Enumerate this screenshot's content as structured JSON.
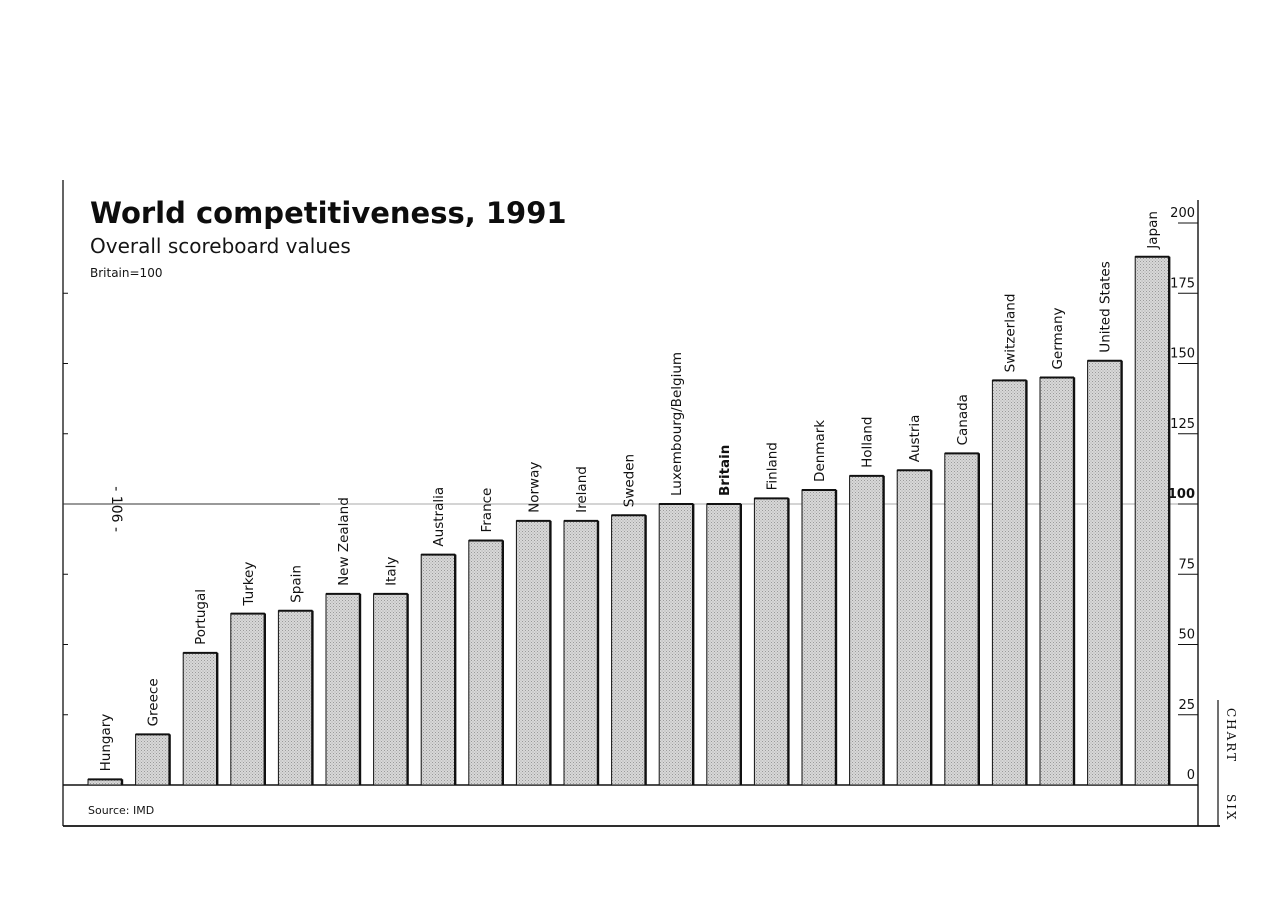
{
  "header": {
    "title": "World competitiveness, 1991",
    "subtitle": "Overall scoreboard values",
    "note": "Britain=100"
  },
  "footer": {
    "source": "Source: IMD",
    "side_tag_top": "CHART",
    "side_tag_bottom": "SIX"
  },
  "colors": {
    "bar_fill": "#d8d8d8",
    "bar_edge": "#111111",
    "axis": "#111111"
  },
  "chart_data": {
    "type": "bar",
    "title": "World competitiveness, 1991",
    "subtitle": "Overall scoreboard values",
    "xlabel": "",
    "ylabel": "",
    "ylim": [
      0,
      200
    ],
    "yticks": [
      "0",
      "25",
      "50",
      "75",
      "100",
      "125",
      "150",
      "175",
      "200"
    ],
    "categories": [
      "Hungary",
      "Greece",
      "Portugal",
      "Turkey",
      "Spain",
      "New Zealand",
      "Italy",
      "Australia",
      "France",
      "Norway",
      "Ireland",
      "Sweden",
      "Luxembourg/Belgium",
      "Britain",
      "Finland",
      "Denmark",
      "Holland",
      "Austria",
      "Canada",
      "Switzerland",
      "Germany",
      "United States",
      "Japan"
    ],
    "values": [
      2,
      18,
      47,
      61,
      62,
      68,
      68,
      82,
      87,
      94,
      94,
      96,
      100,
      100,
      102,
      105,
      110,
      112,
      118,
      144,
      145,
      151,
      188
    ],
    "highlight_category": "Britain",
    "reference_line": 100,
    "annotations": [
      {
        "text": "- 106 -",
        "target_value": 106
      }
    ],
    "grid": false,
    "legend": "none"
  }
}
